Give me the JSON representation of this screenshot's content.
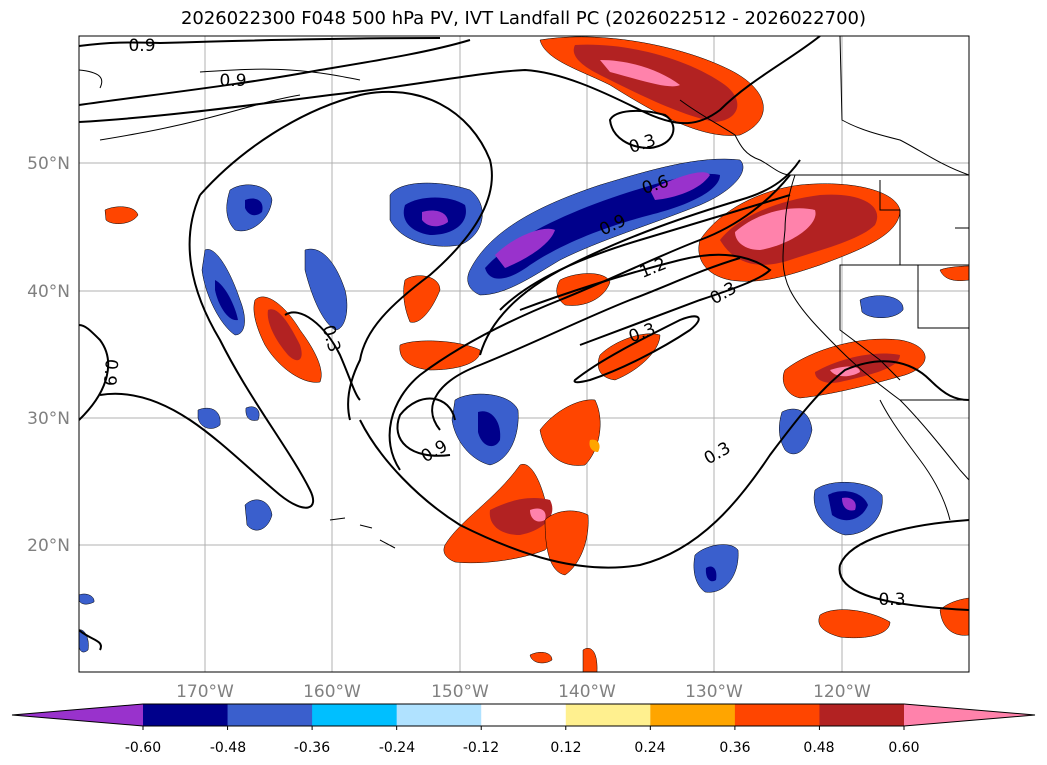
{
  "title": "2026022300 F048 500 hPa PV, IVT Landfall PC (2026022512 - 2026022700)",
  "map": {
    "lon_ticks": [
      "170°W",
      "160°W",
      "150°W",
      "140°W",
      "130°W",
      "120°W"
    ],
    "lat_ticks": [
      "50°N",
      "40°N",
      "30°N",
      "20°N"
    ],
    "grid": true,
    "projection": "PlateCarree",
    "extent_lon": [
      180,
      110
    ],
    "extent_lat": [
      10,
      60
    ]
  },
  "contours": {
    "field": "500 hPa PV",
    "color": "#000000",
    "labels": [
      "0.9",
      "0.9",
      "0.3",
      "0.6",
      "0.9",
      "1.2",
      "0.3",
      "0.3",
      "0.3",
      "0.9",
      "0.3",
      "0.3",
      "0.9"
    ]
  },
  "colorbar": {
    "ticks": [
      "-0.60",
      "-0.48",
      "-0.36",
      "-0.24",
      "-0.12",
      "0.12",
      "0.24",
      "0.36",
      "0.48",
      "0.60"
    ],
    "colors": [
      "#9932cc",
      "#00008b",
      "#3a5fcd",
      "#00bfff",
      "#b0e2ff",
      "#ffffff",
      "#fff08f",
      "#ffa500",
      "#ff4500",
      "#b22222",
      "#ff82ab"
    ],
    "extend": "both"
  },
  "shading_colors": {
    "neg_strong": "#9932cc",
    "neg_high": "#00008b",
    "neg_mid": "#3a5fcd",
    "neg_low": "#00bfff",
    "pos_low": "#ffd700",
    "pos_mid": "#ff4500",
    "pos_high": "#b22222",
    "pos_strong": "#ff82ab"
  }
}
